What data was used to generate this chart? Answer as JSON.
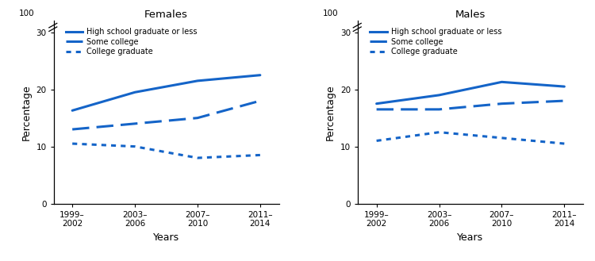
{
  "x_positions": [
    0,
    1,
    2,
    3
  ],
  "x_labels": [
    "1999–\n2002",
    "2003–\n2006",
    "2007–\n2010",
    "2011–\n2014"
  ],
  "females": {
    "title": "Females",
    "high_school": [
      16.3,
      19.5,
      21.5,
      22.5
    ],
    "some_college": [
      13.0,
      14.0,
      15.0,
      18.0
    ],
    "college_grad": [
      10.5,
      10.0,
      8.0,
      8.5
    ]
  },
  "males": {
    "title": "Males",
    "high_school": [
      17.5,
      19.0,
      21.3,
      20.5
    ],
    "some_college": [
      16.5,
      16.5,
      17.5,
      18.0
    ],
    "college_grad": [
      11.0,
      12.5,
      11.5,
      10.5
    ]
  },
  "line_color": "#1464C8",
  "ylim": [
    0,
    32
  ],
  "yticks": [
    0,
    10,
    20,
    30
  ],
  "ylabel": "Percentage",
  "xlabel": "Years",
  "legend_labels": [
    "High school graduate or less",
    "Some college",
    "College graduate"
  ],
  "bg_color": "#ffffff",
  "spine_color": "#000000"
}
